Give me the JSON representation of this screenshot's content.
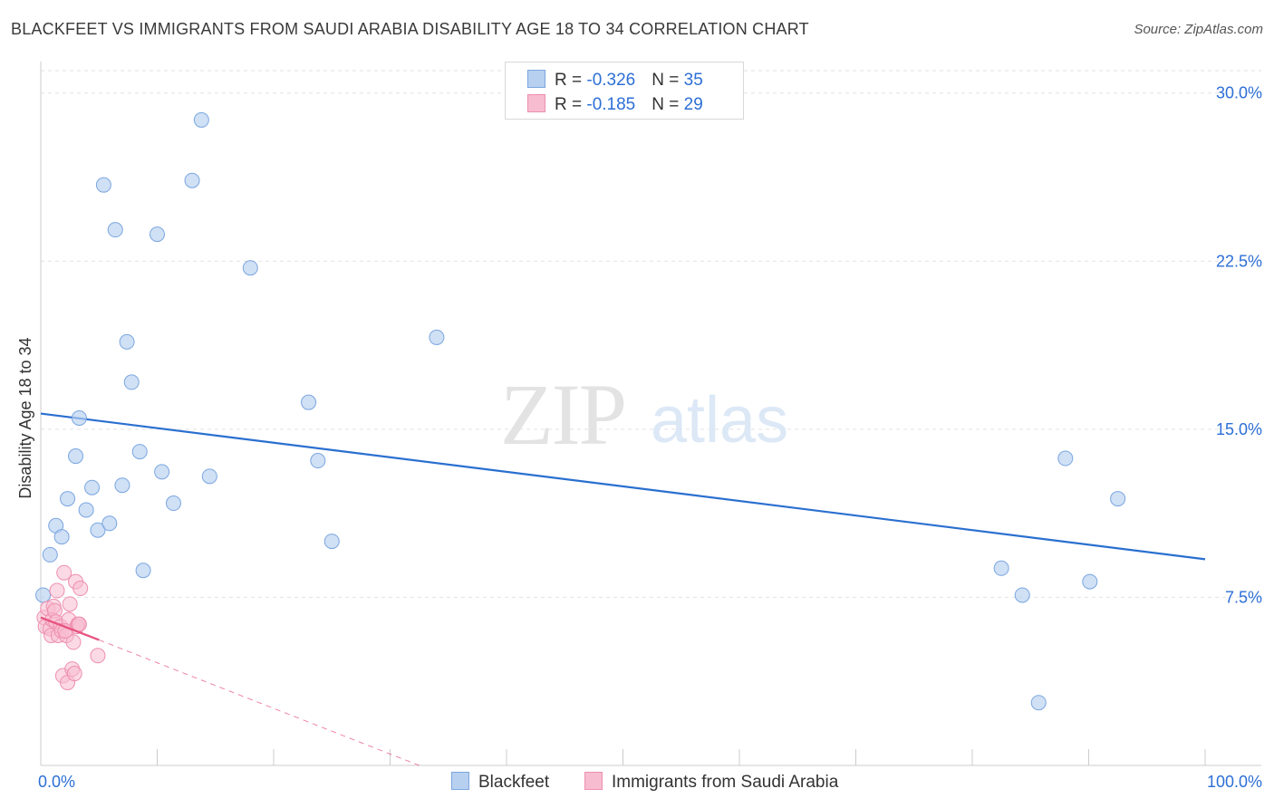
{
  "title": "BLACKFEET VS IMMIGRANTS FROM SAUDI ARABIA DISABILITY AGE 18 TO 34 CORRELATION CHART",
  "source": "Source: ZipAtlas.com",
  "watermark": {
    "zip": "ZIP",
    "atlas": "atlas"
  },
  "legend": {
    "blackfeet": {
      "r_label": "R = ",
      "r_value": "-0.326",
      "n_label": "N = ",
      "n_value": "35"
    },
    "saudi": {
      "r_label": "R = ",
      "r_value": "-0.185",
      "n_label": "N = ",
      "n_value": "29"
    }
  },
  "bottom_legend": {
    "blackfeet": "Blackfeet",
    "saudi": "Immigrants from Saudi Arabia"
  },
  "colors": {
    "blue_fill": "#b7d0f0",
    "blue_stroke": "#7aa6e0",
    "blue_line": "#2a6fd0",
    "pink_fill": "#f7bcd0",
    "pink_stroke": "#ee8fb0",
    "pink_line": "#e8527f",
    "axis_text": "#2d6fd6",
    "grid": "#e2e2e2"
  },
  "chart_data": {
    "type": "scatter",
    "title": "BLACKFEET VS IMMIGRANTS FROM SAUDI ARABIA DISABILITY AGE 18 TO 34 CORRELATION CHART",
    "xlabel": "",
    "ylabel": "Disability Age 18 to 34",
    "xlim": [
      0,
      100
    ],
    "ylim": [
      0,
      31
    ],
    "x_tick_labels": [
      "0.0%",
      "100.0%"
    ],
    "y_ticks": [
      7.5,
      15.0,
      22.5,
      30.0
    ],
    "y_tick_labels": [
      "7.5%",
      "15.0%",
      "22.5%",
      "30.0%"
    ],
    "grid": true,
    "series": [
      {
        "name": "Blackfeet",
        "r": -0.326,
        "n": 35,
        "points": [
          [
            0.2,
            7.6
          ],
          [
            0.8,
            9.4
          ],
          [
            1.3,
            10.7
          ],
          [
            1.8,
            10.2
          ],
          [
            2.3,
            11.9
          ],
          [
            3.0,
            13.8
          ],
          [
            3.3,
            15.5
          ],
          [
            3.9,
            11.4
          ],
          [
            4.4,
            12.4
          ],
          [
            4.9,
            10.5
          ],
          [
            5.4,
            25.9
          ],
          [
            5.9,
            10.8
          ],
          [
            6.4,
            23.9
          ],
          [
            7.0,
            12.5
          ],
          [
            7.4,
            18.9
          ],
          [
            7.8,
            17.1
          ],
          [
            8.5,
            14.0
          ],
          [
            8.8,
            8.7
          ],
          [
            10.0,
            23.7
          ],
          [
            10.4,
            13.1
          ],
          [
            11.4,
            11.7
          ],
          [
            13.0,
            26.1
          ],
          [
            13.8,
            28.8
          ],
          [
            14.5,
            12.9
          ],
          [
            18.0,
            22.2
          ],
          [
            23.0,
            16.2
          ],
          [
            23.8,
            13.6
          ],
          [
            25.0,
            10.0
          ],
          [
            34.0,
            19.1
          ],
          [
            82.5,
            8.8
          ],
          [
            84.3,
            7.6
          ],
          [
            85.7,
            2.8
          ],
          [
            88.0,
            13.7
          ],
          [
            90.1,
            8.2
          ],
          [
            92.5,
            11.9
          ]
        ],
        "trend": {
          "x": [
            0,
            100
          ],
          "y": [
            15.7,
            9.2
          ]
        }
      },
      {
        "name": "Immigrants from Saudi Arabia",
        "r": -0.185,
        "n": 29,
        "points": [
          [
            0.3,
            6.6
          ],
          [
            0.4,
            6.2
          ],
          [
            0.6,
            7.0
          ],
          [
            0.8,
            6.1
          ],
          [
            0.9,
            5.8
          ],
          [
            1.0,
            6.5
          ],
          [
            1.1,
            7.1
          ],
          [
            1.2,
            6.9
          ],
          [
            1.3,
            6.4
          ],
          [
            1.4,
            7.8
          ],
          [
            1.5,
            5.8
          ],
          [
            1.7,
            6.2
          ],
          [
            1.8,
            6.0
          ],
          [
            1.9,
            4.0
          ],
          [
            2.0,
            8.6
          ],
          [
            2.2,
            5.8
          ],
          [
            2.3,
            3.7
          ],
          [
            2.4,
            6.5
          ],
          [
            2.5,
            7.2
          ],
          [
            2.7,
            4.3
          ],
          [
            2.8,
            5.5
          ],
          [
            2.9,
            4.1
          ],
          [
            3.0,
            8.2
          ],
          [
            3.1,
            6.2
          ],
          [
            3.2,
            6.3
          ],
          [
            3.4,
            7.9
          ],
          [
            3.3,
            6.3
          ],
          [
            4.9,
            4.9
          ],
          [
            2.1,
            6.0
          ]
        ],
        "trend_solid": {
          "x": [
            0,
            5
          ],
          "y": [
            6.6,
            5.6
          ]
        },
        "trend_dashed": {
          "x": [
            5,
            32.5
          ],
          "y": [
            5.6,
            0
          ]
        }
      }
    ]
  }
}
